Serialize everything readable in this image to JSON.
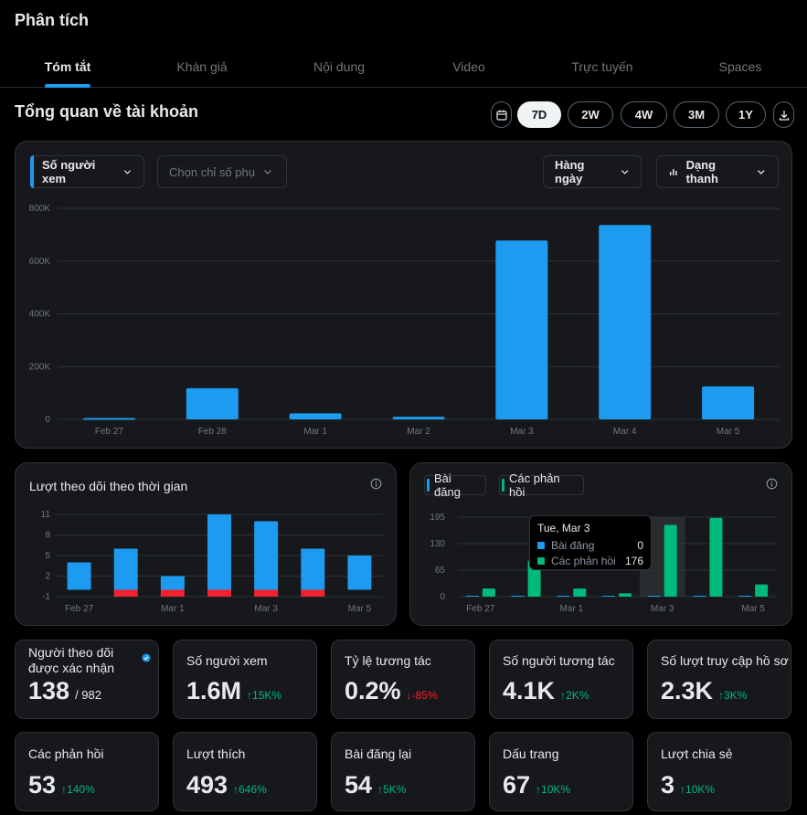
{
  "app_title": "Phân tích",
  "tabs": [
    "Tóm tắt",
    "Khán giả",
    "Nội dung",
    "Video",
    "Trực tuyến",
    "Spaces"
  ],
  "section_title": "Tổng quan về tài khoản",
  "ranges": [
    "7D",
    "2W",
    "4W",
    "3M",
    "1Y"
  ],
  "selected_range": "7D",
  "filters": {
    "metric": "Số người xem",
    "secondary_placeholder": "Chọn chỉ số phụ",
    "interval": "Hàng ngày",
    "chart_type": "Dạng thanh"
  },
  "colors": {
    "blue": "#1d9bf0",
    "green": "#00ba7c",
    "red": "#f4212e"
  },
  "main_chart": {
    "type": "bar",
    "categories": [
      "Feb 27",
      "Feb 28",
      "Mar 1",
      "Mar 2",
      "Mar 3",
      "Mar 4",
      "Mar 5"
    ],
    "y_ticks": [
      "800K",
      "600K",
      "400K",
      "200K",
      "0"
    ],
    "y_tick_values": [
      800000,
      600000,
      400000,
      200000,
      0
    ],
    "values": [
      5000,
      118000,
      23000,
      10000,
      678000,
      737000,
      125000
    ],
    "ylim": [
      0,
      800000
    ]
  },
  "followers_chart": {
    "title": "Lượt theo dõi theo thời gian",
    "type": "bar",
    "categories": [
      "Feb 27",
      "Feb 28",
      "Mar 1",
      "Mar 2",
      "Mar 3",
      "Mar 4",
      "Mar 5"
    ],
    "x_labels": [
      "Feb 27",
      "Mar 1",
      "Mar 3",
      "Mar 5"
    ],
    "y_ticks": [
      "11",
      "8",
      "5",
      "2",
      "-1"
    ],
    "y_tick_values": [
      11,
      8,
      5,
      2,
      -1
    ],
    "series": [
      {
        "name": "gained",
        "values": [
          4,
          6,
          2,
          11,
          10,
          6,
          5
        ]
      },
      {
        "name": "lost",
        "values": [
          0,
          -1,
          -1,
          -1,
          -1,
          -1,
          0
        ]
      }
    ],
    "ylim": [
      -1,
      11
    ]
  },
  "posts_chart": {
    "type": "bar",
    "legend": [
      "Bài đăng",
      "Các phản hồi"
    ],
    "categories": [
      "Feb 27",
      "Feb 28",
      "Mar 1",
      "Mar 2",
      "Mar 3",
      "Mar 4",
      "Mar 5"
    ],
    "x_labels": [
      "Feb 27",
      "Mar 1",
      "Mar 3",
      "Mar 5"
    ],
    "y_ticks": [
      "195",
      "130",
      "65",
      "0"
    ],
    "y_tick_values": [
      195,
      130,
      65,
      0
    ],
    "series": [
      {
        "name": "Bài đăng",
        "values": [
          0,
          0,
          0,
          0,
          0,
          0,
          0
        ]
      },
      {
        "name": "Các phản hồi",
        "values": [
          20,
          88,
          20,
          8,
          176,
          193,
          30
        ]
      }
    ],
    "ylim": [
      0,
      195
    ],
    "highlight_index": 4,
    "tooltip": {
      "title": "Tue, Mar 3",
      "rows": [
        {
          "label": "Bài đăng",
          "value": "0"
        },
        {
          "label": "Các phản hồi",
          "value": "176"
        }
      ]
    }
  },
  "stats_row1": [
    {
      "label": "Người theo dõi được xác nhận",
      "value": "138",
      "suffix": "/ 982",
      "verified": true
    },
    {
      "label": "Số người xem",
      "value": "1.6M",
      "change": "↑15K%",
      "dir": "up"
    },
    {
      "label": "Tỷ lệ tương tác",
      "value": "0.2%",
      "change": "↓-85%",
      "dir": "down"
    },
    {
      "label": "Số người tương tác",
      "value": "4.1K",
      "change": "↑2K%",
      "dir": "up"
    },
    {
      "label": "Số lượt truy cập hồ sơ",
      "value": "2.3K",
      "change": "↑3K%",
      "dir": "up"
    }
  ],
  "stats_row2": [
    {
      "label": "Các phản hồi",
      "value": "53",
      "change": "↑140%",
      "dir": "up"
    },
    {
      "label": "Lượt thích",
      "value": "493",
      "change": "↑646%",
      "dir": "up"
    },
    {
      "label": "Bài đăng lại",
      "value": "54",
      "change": "↑5K%",
      "dir": "up"
    },
    {
      "label": "Dấu trang",
      "value": "67",
      "change": "↑10K%",
      "dir": "up"
    },
    {
      "label": "Lượt chia sẻ",
      "value": "3",
      "change": "↑10K%",
      "dir": "up"
    }
  ]
}
